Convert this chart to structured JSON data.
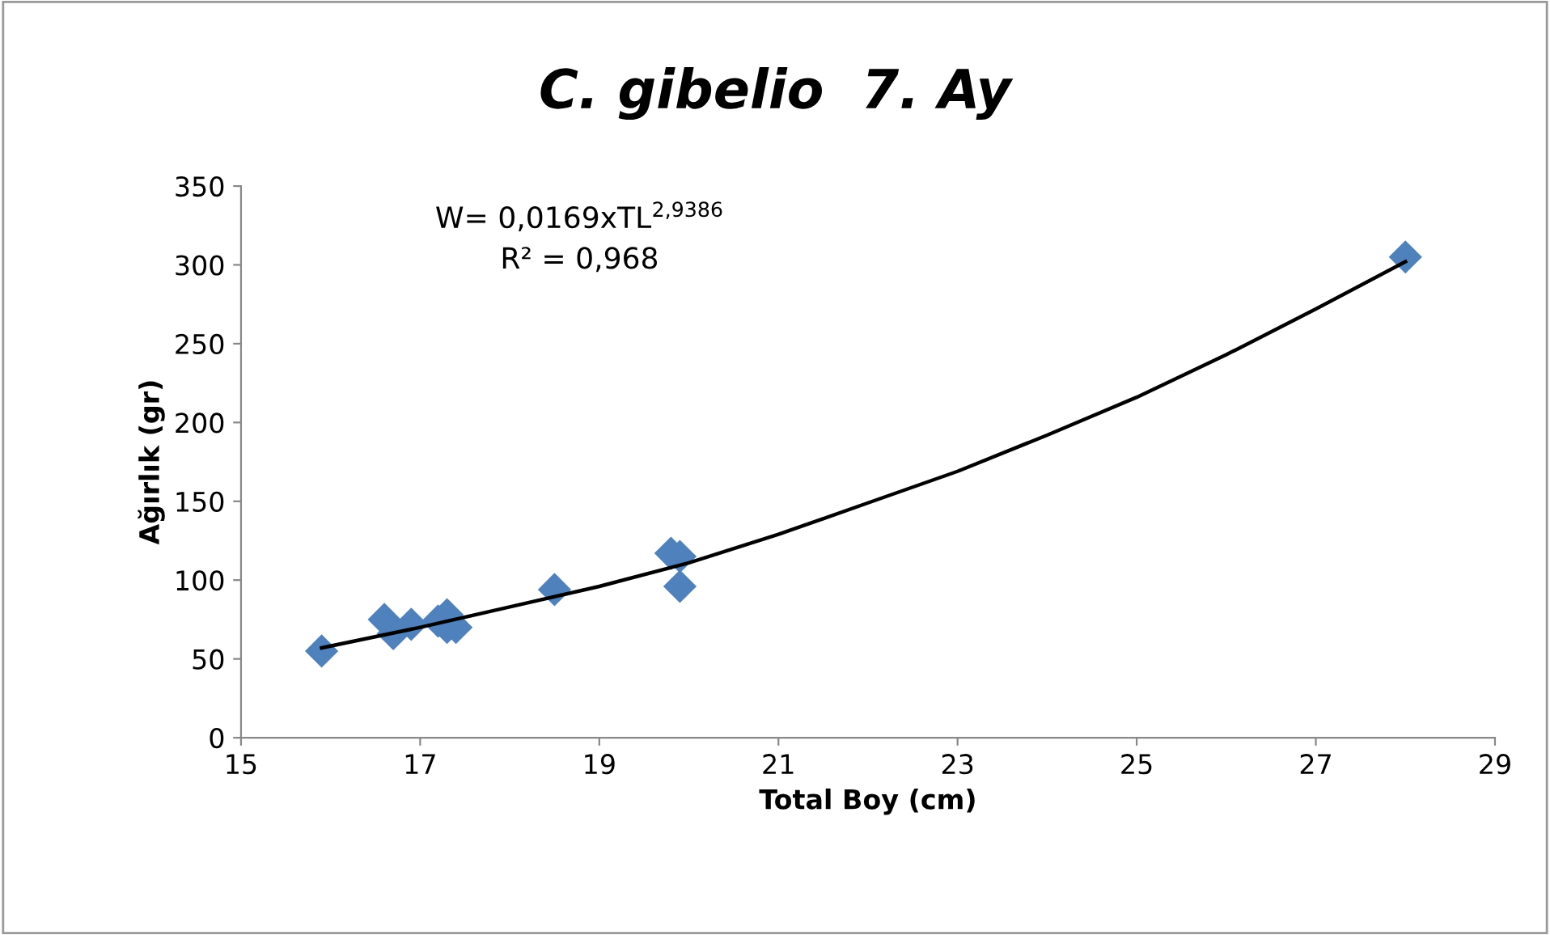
{
  "chart_data": {
    "type": "scatter",
    "title": "C. gibelio  7. Ay",
    "xlabel": "Total Boy (cm)",
    "ylabel": "Ağırlık (gr)",
    "annotations": [
      "W= 0,0169xTL$^{2,9386}$",
      "R² = 0,968"
    ],
    "series": [
      {
        "color": "#4f81bd",
        "marker": "diamond",
        "x": [
          15.9,
          16.6,
          16.7,
          16.9,
          17.2,
          17.3,
          17.3,
          17.4,
          18.5,
          19.8,
          19.9,
          19.9,
          28.0
        ],
        "values": [
          55,
          75,
          66,
          72,
          74,
          78,
          70,
          70,
          94,
          117,
          115,
          96,
          305
        ]
      },
      {
        "type": "line",
        "color": "#000000",
        "marker": "none",
        "x": [
          15.9,
          17,
          18,
          19,
          20,
          21,
          22,
          23,
          24,
          25,
          26,
          27,
          28
        ],
        "values": [
          57,
          70,
          83,
          96,
          111,
          129,
          149,
          169,
          192,
          216,
          243,
          272,
          302
        ]
      }
    ],
    "xlim": [
      15,
      29
    ],
    "xticks": [
      15,
      17,
      19,
      21,
      23,
      25,
      27,
      29
    ],
    "ylim": [
      0,
      350
    ],
    "yticks": [
      0,
      50,
      100,
      150,
      200,
      250,
      300,
      350
    ],
    "grid": false,
    "legend": false
  }
}
